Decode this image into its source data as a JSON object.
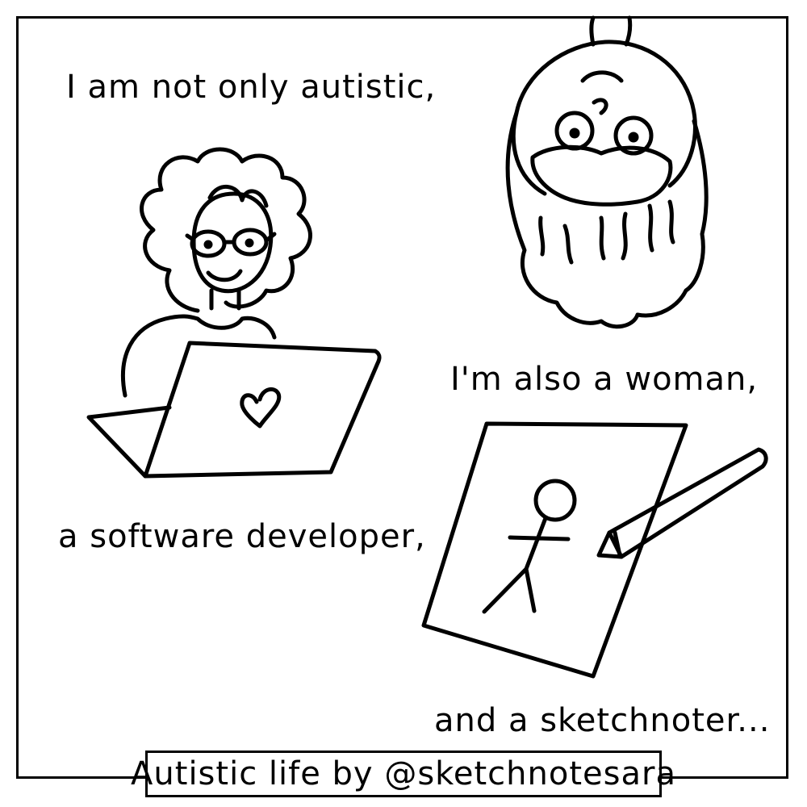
{
  "captions": {
    "line1": "I am not only autistic,",
    "line2": "I'm also a woman,",
    "line3": "a software developer,",
    "line4": "and a sketchnoter..."
  },
  "credit": "Autistic life by @sketchnotesara",
  "illustrations": {
    "developer": "woman-with-laptop-drawing",
    "woman": "upside-down-woman-face-drawing",
    "sketchnoter": "paper-with-stick-figure-and-pencil-drawing"
  },
  "colors": {
    "ink": "#000000",
    "paper": "#ffffff"
  }
}
